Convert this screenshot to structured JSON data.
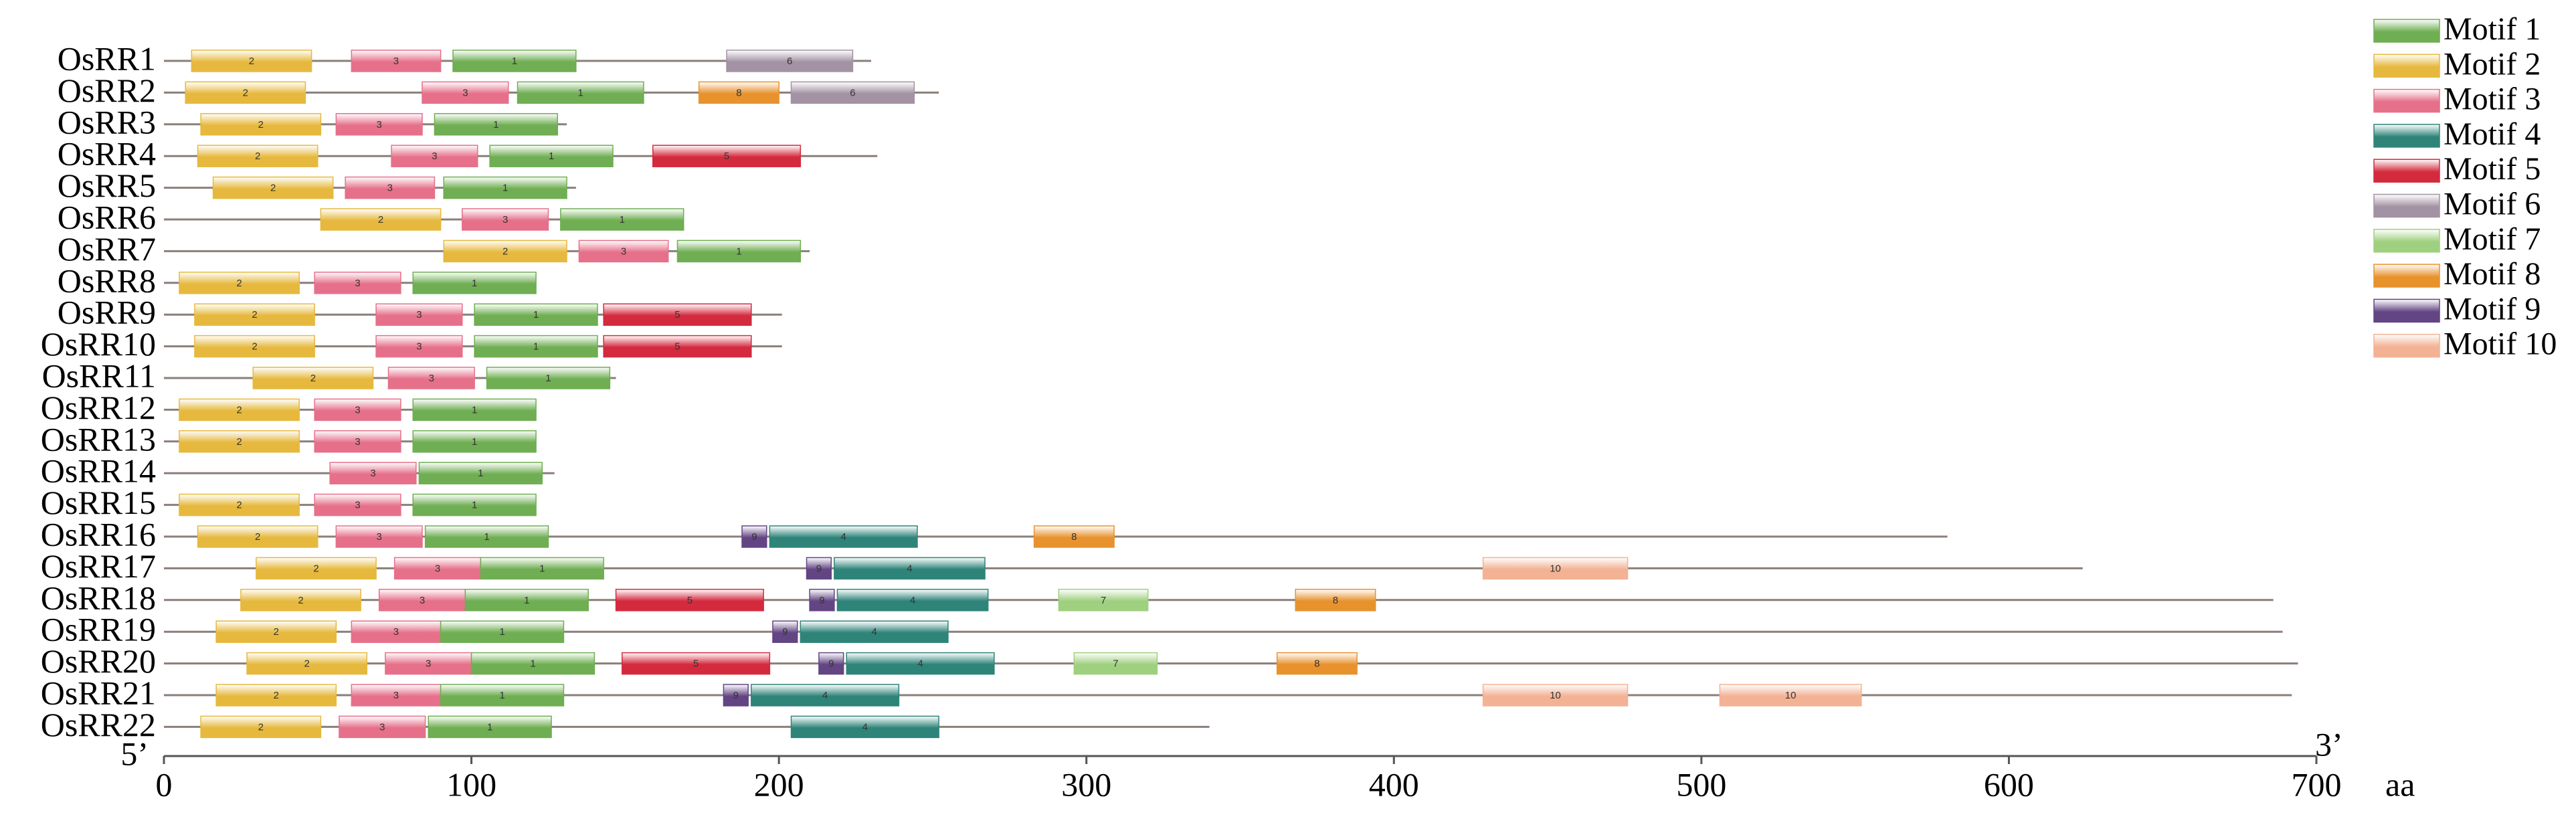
{
  "chart_data": {
    "type": "motif",
    "xlim": [
      0,
      700
    ],
    "xticks": [
      0,
      100,
      200,
      300,
      400,
      500,
      600,
      700
    ],
    "x_unit": "aa",
    "five_prime": "5’",
    "three_prime": "3’",
    "legend": [
      {
        "name": "Motif 1",
        "color": "#6fae52"
      },
      {
        "name": "Motif 2",
        "color": "#e6b93e"
      },
      {
        "name": "Motif 3",
        "color": "#e6708a"
      },
      {
        "name": "Motif 4",
        "color": "#2f847a"
      },
      {
        "name": "Motif 5",
        "color": "#d42a3e"
      },
      {
        "name": "Motif 6",
        "color": "#a392a3"
      },
      {
        "name": "Motif 7",
        "color": "#9fd07f"
      },
      {
        "name": "Motif 8",
        "color": "#e8922e"
      },
      {
        "name": "Motif 9",
        "color": "#634584"
      },
      {
        "name": "Motif 10",
        "color": "#f3b294"
      }
    ],
    "genes": [
      {
        "name": "OsRR1",
        "length": 230,
        "motifs": [
          {
            "motif": 2,
            "start": 9,
            "end": 48
          },
          {
            "motif": 3,
            "start": 61,
            "end": 90
          },
          {
            "motif": 1,
            "start": 94,
            "end": 134
          },
          {
            "motif": 6,
            "start": 183,
            "end": 224
          }
        ]
      },
      {
        "name": "OsRR2",
        "length": 252,
        "motifs": [
          {
            "motif": 2,
            "start": 7,
            "end": 46
          },
          {
            "motif": 3,
            "start": 84,
            "end": 112
          },
          {
            "motif": 1,
            "start": 115,
            "end": 156
          },
          {
            "motif": 8,
            "start": 174,
            "end": 200
          },
          {
            "motif": 6,
            "start": 204,
            "end": 244
          }
        ]
      },
      {
        "name": "OsRR3",
        "length": 131,
        "motifs": [
          {
            "motif": 2,
            "start": 12,
            "end": 51
          },
          {
            "motif": 3,
            "start": 56,
            "end": 84
          },
          {
            "motif": 1,
            "start": 88,
            "end": 128
          }
        ]
      },
      {
        "name": "OsRR4",
        "length": 232,
        "motifs": [
          {
            "motif": 2,
            "start": 11,
            "end": 50
          },
          {
            "motif": 3,
            "start": 74,
            "end": 102
          },
          {
            "motif": 1,
            "start": 106,
            "end": 146
          },
          {
            "motif": 5,
            "start": 159,
            "end": 207
          }
        ]
      },
      {
        "name": "OsRR5",
        "length": 134,
        "motifs": [
          {
            "motif": 2,
            "start": 16,
            "end": 55
          },
          {
            "motif": 3,
            "start": 59,
            "end": 88
          },
          {
            "motif": 1,
            "start": 91,
            "end": 131
          }
        ]
      },
      {
        "name": "OsRR6",
        "length": 169,
        "motifs": [
          {
            "motif": 2,
            "start": 51,
            "end": 90
          },
          {
            "motif": 3,
            "start": 97,
            "end": 125
          },
          {
            "motif": 1,
            "start": 129,
            "end": 169
          }
        ]
      },
      {
        "name": "OsRR7",
        "length": 210,
        "motifs": [
          {
            "motif": 2,
            "start": 91,
            "end": 131
          },
          {
            "motif": 3,
            "start": 135,
            "end": 164
          },
          {
            "motif": 1,
            "start": 167,
            "end": 207
          }
        ]
      },
      {
        "name": "OsRR8",
        "length": 121,
        "motifs": [
          {
            "motif": 2,
            "start": 5,
            "end": 44
          },
          {
            "motif": 3,
            "start": 49,
            "end": 77
          },
          {
            "motif": 1,
            "start": 81,
            "end": 121
          }
        ]
      },
      {
        "name": "OsRR9",
        "length": 201,
        "motifs": [
          {
            "motif": 2,
            "start": 10,
            "end": 49
          },
          {
            "motif": 3,
            "start": 69,
            "end": 97
          },
          {
            "motif": 1,
            "start": 101,
            "end": 141
          },
          {
            "motif": 5,
            "start": 143,
            "end": 191
          }
        ]
      },
      {
        "name": "OsRR10",
        "length": 201,
        "motifs": [
          {
            "motif": 2,
            "start": 10,
            "end": 49
          },
          {
            "motif": 3,
            "start": 69,
            "end": 97
          },
          {
            "motif": 1,
            "start": 101,
            "end": 141
          },
          {
            "motif": 5,
            "start": 143,
            "end": 191
          }
        ]
      },
      {
        "name": "OsRR11",
        "length": 147,
        "motifs": [
          {
            "motif": 2,
            "start": 29,
            "end": 68
          },
          {
            "motif": 3,
            "start": 73,
            "end": 101
          },
          {
            "motif": 1,
            "start": 105,
            "end": 145
          }
        ]
      },
      {
        "name": "OsRR12",
        "length": 121,
        "motifs": [
          {
            "motif": 2,
            "start": 5,
            "end": 44
          },
          {
            "motif": 3,
            "start": 49,
            "end": 77
          },
          {
            "motif": 1,
            "start": 81,
            "end": 121
          }
        ]
      },
      {
        "name": "OsRR13",
        "length": 121,
        "motifs": [
          {
            "motif": 2,
            "start": 5,
            "end": 44
          },
          {
            "motif": 3,
            "start": 49,
            "end": 77
          },
          {
            "motif": 1,
            "start": 81,
            "end": 121
          }
        ]
      },
      {
        "name": "OsRR14",
        "length": 127,
        "motifs": [
          {
            "motif": 3,
            "start": 54,
            "end": 82
          },
          {
            "motif": 1,
            "start": 83,
            "end": 123
          }
        ]
      },
      {
        "name": "OsRR15",
        "length": 121,
        "motifs": [
          {
            "motif": 2,
            "start": 5,
            "end": 44
          },
          {
            "motif": 3,
            "start": 49,
            "end": 77
          },
          {
            "motif": 1,
            "start": 81,
            "end": 121
          }
        ]
      },
      {
        "name": "OsRR16",
        "length": 580,
        "motifs": [
          {
            "motif": 2,
            "start": 11,
            "end": 50
          },
          {
            "motif": 3,
            "start": 56,
            "end": 84
          },
          {
            "motif": 1,
            "start": 85,
            "end": 125
          },
          {
            "motif": 9,
            "start": 188,
            "end": 196
          },
          {
            "motif": 4,
            "start": 197,
            "end": 245
          },
          {
            "motif": 8,
            "start": 283,
            "end": 309
          }
        ]
      },
      {
        "name": "OsRR17",
        "length": 624,
        "motifs": [
          {
            "motif": 2,
            "start": 30,
            "end": 69
          },
          {
            "motif": 3,
            "start": 75,
            "end": 103
          },
          {
            "motif": 1,
            "start": 103,
            "end": 143
          },
          {
            "motif": 9,
            "start": 209,
            "end": 217
          },
          {
            "motif": 4,
            "start": 218,
            "end": 267
          },
          {
            "motif": 10,
            "start": 429,
            "end": 476
          }
        ]
      },
      {
        "name": "OsRR18",
        "length": 686,
        "motifs": [
          {
            "motif": 2,
            "start": 25,
            "end": 64
          },
          {
            "motif": 3,
            "start": 70,
            "end": 98
          },
          {
            "motif": 1,
            "start": 98,
            "end": 138
          },
          {
            "motif": 5,
            "start": 147,
            "end": 195
          },
          {
            "motif": 9,
            "start": 210,
            "end": 218
          },
          {
            "motif": 4,
            "start": 219,
            "end": 268
          },
          {
            "motif": 7,
            "start": 291,
            "end": 320
          },
          {
            "motif": 8,
            "start": 368,
            "end": 394
          }
        ]
      },
      {
        "name": "OsRR19",
        "length": 689,
        "motifs": [
          {
            "motif": 2,
            "start": 17,
            "end": 56
          },
          {
            "motif": 3,
            "start": 61,
            "end": 90
          },
          {
            "motif": 1,
            "start": 90,
            "end": 130
          },
          {
            "motif": 9,
            "start": 198,
            "end": 206
          },
          {
            "motif": 4,
            "start": 207,
            "end": 255
          }
        ]
      },
      {
        "name": "OsRR20",
        "length": 694,
        "motifs": [
          {
            "motif": 2,
            "start": 27,
            "end": 66
          },
          {
            "motif": 3,
            "start": 72,
            "end": 100
          },
          {
            "motif": 1,
            "start": 100,
            "end": 140
          },
          {
            "motif": 5,
            "start": 149,
            "end": 197
          },
          {
            "motif": 9,
            "start": 213,
            "end": 221
          },
          {
            "motif": 4,
            "start": 222,
            "end": 270
          },
          {
            "motif": 7,
            "start": 296,
            "end": 323
          },
          {
            "motif": 8,
            "start": 362,
            "end": 388
          }
        ]
      },
      {
        "name": "OsRR21",
        "length": 692,
        "motifs": [
          {
            "motif": 2,
            "start": 17,
            "end": 56
          },
          {
            "motif": 3,
            "start": 61,
            "end": 90
          },
          {
            "motif": 1,
            "start": 90,
            "end": 130
          },
          {
            "motif": 9,
            "start": 182,
            "end": 190
          },
          {
            "motif": 4,
            "start": 191,
            "end": 239
          },
          {
            "motif": 10,
            "start": 429,
            "end": 476
          },
          {
            "motif": 10,
            "start": 506,
            "end": 552
          }
        ]
      },
      {
        "name": "OsRR22",
        "length": 340,
        "motifs": [
          {
            "motif": 2,
            "start": 12,
            "end": 51
          },
          {
            "motif": 3,
            "start": 57,
            "end": 85
          },
          {
            "motif": 1,
            "start": 86,
            "end": 126
          },
          {
            "motif": 4,
            "start": 204,
            "end": 252
          }
        ]
      }
    ]
  }
}
